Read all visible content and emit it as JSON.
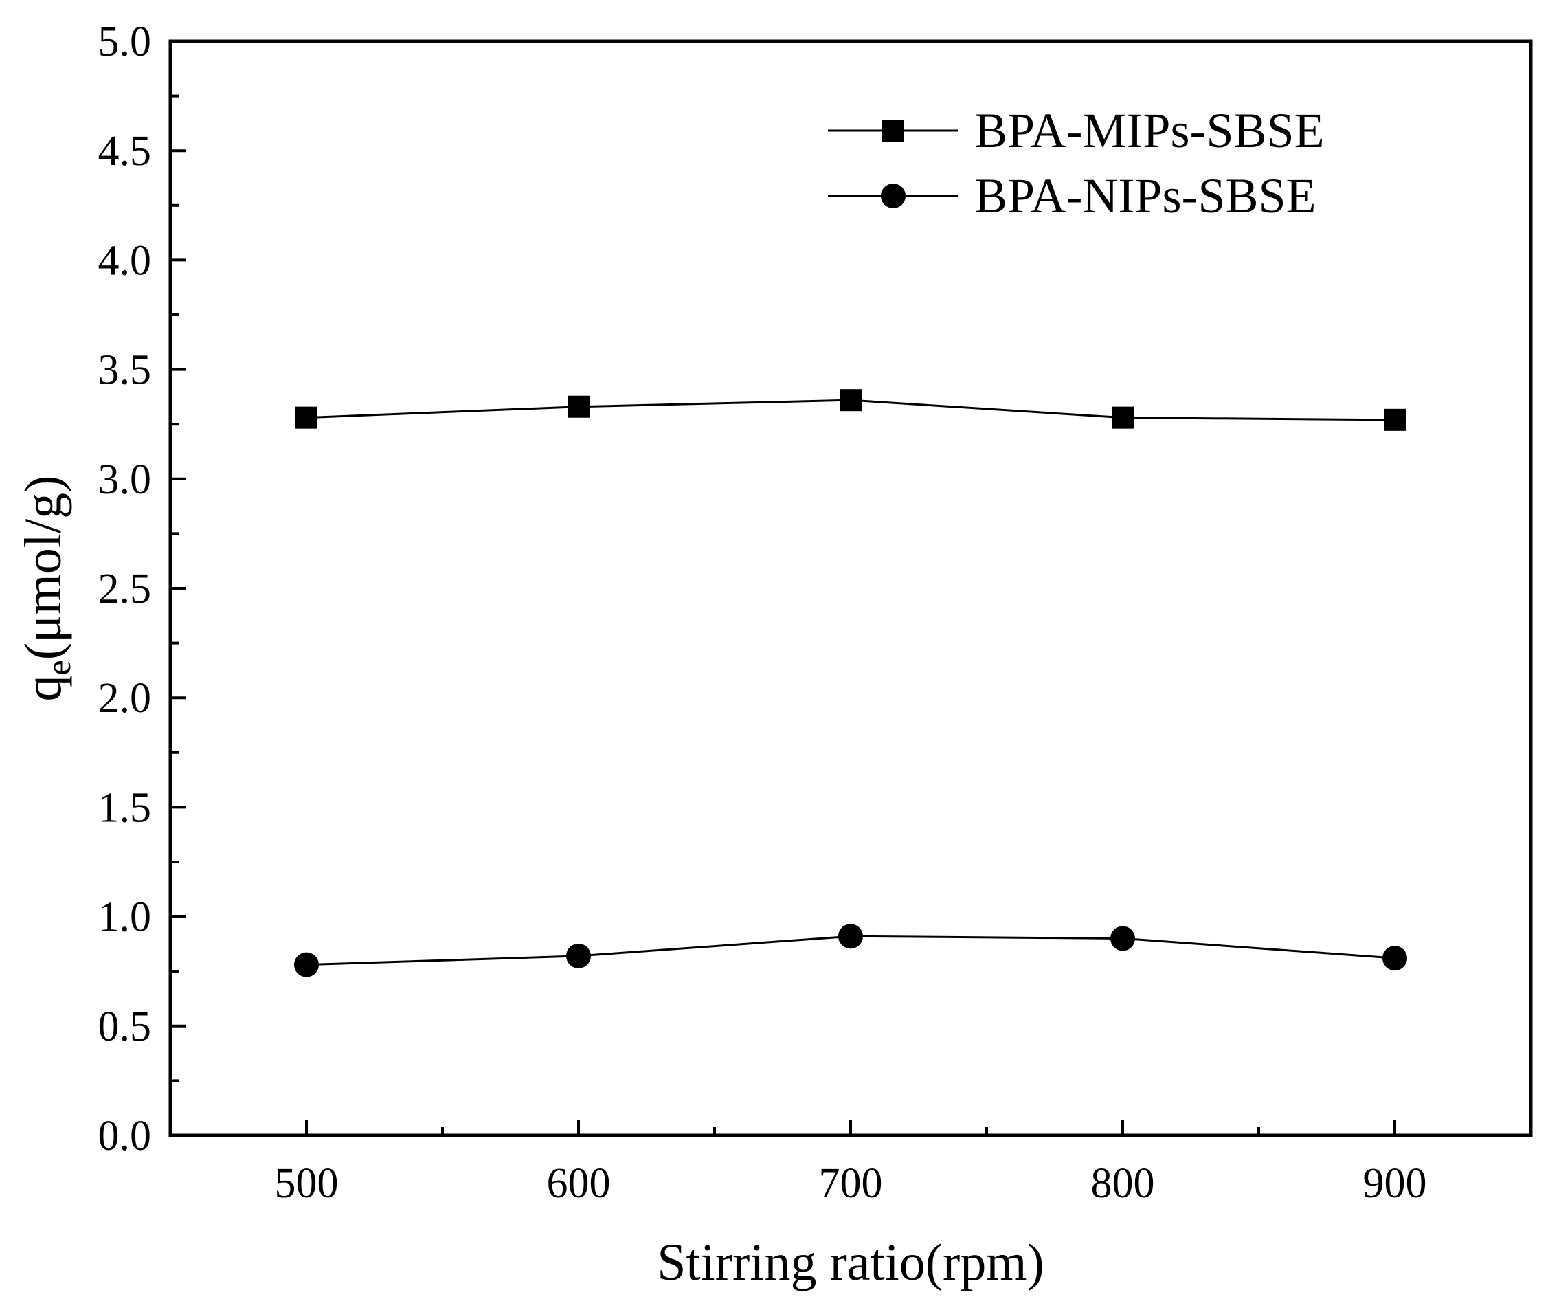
{
  "chart_data": {
    "type": "line",
    "x": [
      500,
      600,
      700,
      800,
      900
    ],
    "series": [
      {
        "name": "BPA-MIPs-SBSE",
        "marker": "square",
        "values": [
          3.28,
          3.33,
          3.36,
          3.28,
          3.27
        ]
      },
      {
        "name": "BPA-NIPs-SBSE",
        "marker": "circle",
        "values": [
          0.78,
          0.82,
          0.91,
          0.9,
          0.81
        ]
      }
    ],
    "xlabel": "Stirring ratio(rpm)",
    "ylabel": {
      "base": "q",
      "sub": "e",
      "rest": "(μmol/g)"
    },
    "xlim": [
      450,
      950
    ],
    "ylim": [
      0,
      5
    ],
    "x_ticks": [
      "500",
      "600",
      "700",
      "800",
      "900"
    ],
    "y_ticks": [
      "0.0",
      "0.5",
      "1.0",
      "1.5",
      "2.0",
      "2.5",
      "3.0",
      "3.5",
      "4.0",
      "4.5",
      "5.0"
    ],
    "grid": false,
    "legend_position": "top-right",
    "line_color": "#000000"
  }
}
